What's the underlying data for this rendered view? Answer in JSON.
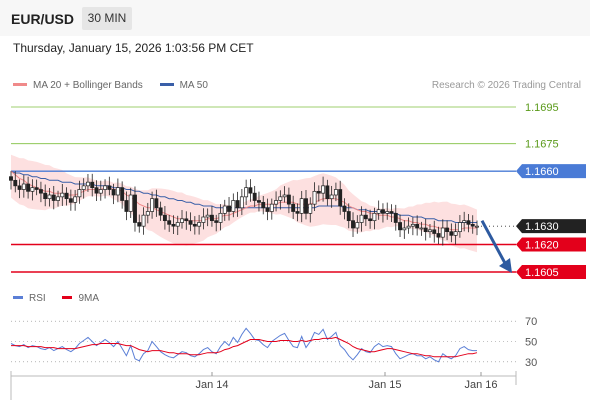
{
  "header": {
    "symbol": "EUR/USD",
    "timeframe": "30 MIN",
    "datetime": "Thursday, January 15, 2026 1:03:56 PM CET"
  },
  "legend": {
    "ma20_label": "MA 20 + Bollinger Bands",
    "ma50_label": "MA 50",
    "credit": "Research © 2026 Trading Central",
    "rsi_label": "RSI",
    "ma9_label": "9MA"
  },
  "colors": {
    "ma20": "#f08a8a",
    "ma50": "#3a5fa8",
    "bollinger_fill": "#fde0e0",
    "resistance_green": "#7fbf3f",
    "resistance_blue": "#4a7bd6",
    "support_red": "#e3001b",
    "rsi_line": "#5b7fd6",
    "rsi_ma": "#e3001b",
    "arrow": "#2d5aa0"
  },
  "chart_data": [
    {
      "type": "candlestick",
      "title": "",
      "x_tick_labels": [
        "Jan 14",
        "Jan 15",
        "Jan 16"
      ],
      "y_range": [
        1.1598,
        1.1705
      ],
      "levels": [
        {
          "value": 1.1695,
          "label": "1.1695",
          "style": "resistance-green"
        },
        {
          "value": 1.1675,
          "label": "1.1675",
          "style": "resistance-green"
        },
        {
          "value": 1.166,
          "label": "1.1660",
          "style": "pivot-blue"
        },
        {
          "value": 1.163,
          "label": "1.1630",
          "style": "last-price"
        },
        {
          "value": 1.162,
          "label": "1.1620",
          "style": "support-red"
        },
        {
          "value": 1.1605,
          "label": "1.1605",
          "style": "support-red"
        }
      ],
      "last_price": 1.163,
      "forecast_arrow": {
        "from": 1.1633,
        "to": 1.1605,
        "direction": "down"
      },
      "close_series": [
        1.1655,
        1.1652,
        1.165,
        1.1653,
        1.1649,
        1.1651,
        1.165,
        1.1648,
        1.1645,
        1.1647,
        1.1644,
        1.1646,
        1.1648,
        1.1645,
        1.1643,
        1.1646,
        1.165,
        1.1652,
        1.1654,
        1.1651,
        1.1648,
        1.165,
        1.1652,
        1.165,
        1.1647,
        1.1651,
        1.1644,
        1.1638,
        1.1647,
        1.1632,
        1.163,
        1.1636,
        1.1638,
        1.1645,
        1.164,
        1.1636,
        1.1633,
        1.1631,
        1.163,
        1.1632,
        1.1634,
        1.1633,
        1.1631,
        1.163,
        1.1632,
        1.1635,
        1.1636,
        1.1633,
        1.1632,
        1.1637,
        1.1641,
        1.1638,
        1.1644,
        1.164,
        1.1646,
        1.1651,
        1.1648,
        1.1644,
        1.1643,
        1.164,
        1.1638,
        1.1642,
        1.1644,
        1.1646,
        1.1647,
        1.1642,
        1.1638,
        1.1637,
        1.1645,
        1.1637,
        1.1642,
        1.1649,
        1.1648,
        1.1652,
        1.1645,
        1.1647,
        1.165,
        1.1641,
        1.1638,
        1.1633,
        1.1629,
        1.1632,
        1.1636,
        1.1634,
        1.1633,
        1.1637,
        1.1639,
        1.1637,
        1.1638,
        1.1637,
        1.1632,
        1.1628,
        1.1629,
        1.163,
        1.1631,
        1.1629,
        1.1629,
        1.1627,
        1.1628,
        1.1626,
        1.1624,
        1.1629,
        1.1627,
        1.1625,
        1.1627,
        1.1632,
        1.1633,
        1.1631,
        1.163,
        1.163
      ],
      "ma20_series": [
        1.166,
        1.1658,
        1.1656,
        1.1655,
        1.1653,
        1.1652,
        1.1651,
        1.165,
        1.1649,
        1.1649,
        1.1648,
        1.1648,
        1.1648,
        1.1647,
        1.1647,
        1.1647,
        1.1648,
        1.1649,
        1.165,
        1.165,
        1.165,
        1.165,
        1.1651,
        1.1651,
        1.165,
        1.165,
        1.1649,
        1.1647,
        1.1646,
        1.1644,
        1.1642,
        1.1641,
        1.164,
        1.164,
        1.1639,
        1.1638,
        1.1637,
        1.1636,
        1.1635,
        1.1634,
        1.1634,
        1.1633,
        1.1633,
        1.1633,
        1.1633,
        1.1633,
        1.1634,
        1.1634,
        1.1634,
        1.1635,
        1.1636,
        1.1636,
        1.1637,
        1.1638,
        1.1639,
        1.164,
        1.1641,
        1.1641,
        1.1642,
        1.1642,
        1.1642,
        1.1642,
        1.1642,
        1.1643,
        1.1643,
        1.1643,
        1.1643,
        1.1642,
        1.1642,
        1.1642,
        1.1642,
        1.1643,
        1.1644,
        1.1645,
        1.1645,
        1.1645,
        1.1645,
        1.1644,
        1.1643,
        1.1641,
        1.164,
        1.1639,
        1.1638,
        1.1638,
        1.1637,
        1.1637,
        1.1636,
        1.1636,
        1.1636,
        1.1635,
        1.1635,
        1.1634,
        1.1633,
        1.1633,
        1.1632,
        1.1632,
        1.1631,
        1.1631,
        1.163,
        1.163,
        1.1629,
        1.1629,
        1.1629,
        1.1628,
        1.1628,
        1.1628,
        1.1629,
        1.1629,
        1.1629,
        1.1629
      ],
      "ma50_series": [
        1.166,
        1.1659,
        1.1659,
        1.1658,
        1.1658,
        1.1657,
        1.1657,
        1.1656,
        1.1656,
        1.1655,
        1.1655,
        1.1655,
        1.1654,
        1.1654,
        1.1654,
        1.1653,
        1.1653,
        1.1653,
        1.1653,
        1.1653,
        1.1652,
        1.1652,
        1.1652,
        1.1652,
        1.1651,
        1.1651,
        1.1651,
        1.165,
        1.165,
        1.1649,
        1.1649,
        1.1648,
        1.1648,
        1.1647,
        1.1647,
        1.1646,
        1.1646,
        1.1645,
        1.1645,
        1.1644,
        1.1644,
        1.1643,
        1.1643,
        1.1642,
        1.1642,
        1.1641,
        1.1641,
        1.1641,
        1.164,
        1.164,
        1.164,
        1.164,
        1.164,
        1.164,
        1.164,
        1.164,
        1.164,
        1.164,
        1.164,
        1.164,
        1.164,
        1.164,
        1.164,
        1.164,
        1.164,
        1.164,
        1.164,
        1.164,
        1.164,
        1.164,
        1.164,
        1.164,
        1.1641,
        1.1641,
        1.1641,
        1.1641,
        1.1641,
        1.1641,
        1.164,
        1.164,
        1.164,
        1.1639,
        1.1639,
        1.1639,
        1.1638,
        1.1638,
        1.1638,
        1.1638,
        1.1637,
        1.1637,
        1.1637,
        1.1636,
        1.1636,
        1.1636,
        1.1635,
        1.1635,
        1.1635,
        1.1634,
        1.1634,
        1.1634,
        1.1633,
        1.1633,
        1.1633,
        1.1633,
        1.1632,
        1.1632,
        1.1632,
        1.1632,
        1.1632,
        1.1632
      ],
      "bollinger_width": 0.0009
    },
    {
      "type": "line",
      "title": "",
      "y_tick_labels": [
        "70",
        "50",
        "30"
      ],
      "ylim": [
        20,
        80
      ],
      "guides": [
        70,
        50,
        30
      ],
      "series": [
        {
          "name": "RSI",
          "values": [
            48,
            46,
            45,
            47,
            44,
            46,
            45,
            43,
            42,
            44,
            41,
            43,
            45,
            42,
            40,
            43,
            48,
            51,
            54,
            50,
            46,
            49,
            52,
            49,
            45,
            50,
            43,
            36,
            46,
            33,
            31,
            38,
            41,
            50,
            45,
            40,
            37,
            35,
            34,
            37,
            40,
            39,
            36,
            35,
            38,
            42,
            44,
            40,
            38,
            45,
            50,
            46,
            54,
            49,
            57,
            63,
            58,
            52,
            51,
            47,
            44,
            50,
            53,
            56,
            58,
            51,
            45,
            44,
            55,
            44,
            50,
            59,
            57,
            62,
            52,
            55,
            59,
            46,
            42,
            36,
            32,
            37,
            43,
            40,
            39,
            45,
            48,
            45,
            46,
            45,
            38,
            33,
            35,
            37,
            38,
            36,
            36,
            33,
            35,
            32,
            30,
            38,
            35,
            33,
            36,
            43,
            45,
            42,
            41,
            41
          ]
        },
        {
          "name": "9MA",
          "values": [
            46,
            46,
            46,
            46,
            45,
            45,
            45,
            45,
            44,
            44,
            44,
            43,
            43,
            43,
            43,
            43,
            44,
            45,
            46,
            47,
            47,
            48,
            48,
            48,
            48,
            48,
            47,
            46,
            46,
            44,
            42,
            41,
            40,
            41,
            41,
            41,
            40,
            39,
            39,
            38,
            38,
            38,
            37,
            37,
            37,
            38,
            39,
            39,
            39,
            40,
            42,
            43,
            45,
            46,
            48,
            50,
            52,
            52,
            52,
            51,
            50,
            50,
            50,
            51,
            51,
            51,
            50,
            50,
            51,
            50,
            51,
            52,
            52,
            53,
            53,
            53,
            54,
            52,
            50,
            48,
            45,
            43,
            42,
            41,
            40,
            40,
            41,
            42,
            43,
            43,
            42,
            41,
            40,
            39,
            38,
            38,
            37,
            36,
            36,
            35,
            35,
            35,
            35,
            35,
            35,
            36,
            37,
            38,
            38,
            39
          ]
        }
      ]
    }
  ]
}
